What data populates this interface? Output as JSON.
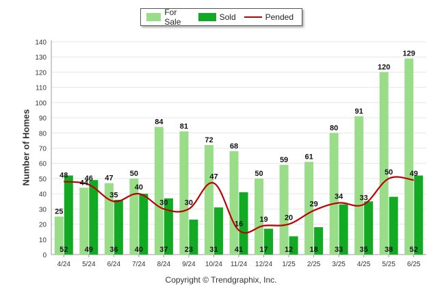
{
  "chart_data": {
    "type": "bar",
    "categories": [
      "4/24",
      "5/24",
      "6/24",
      "7/24",
      "8/24",
      "9/24",
      "10/24",
      "11/24",
      "12/24",
      "1/25",
      "2/25",
      "3/25",
      "4/25",
      "5/25",
      "6/25"
    ],
    "series": [
      {
        "name": "For Sale",
        "type": "bar",
        "color": "#99dd88",
        "values": [
          25,
          44,
          47,
          50,
          84,
          81,
          72,
          68,
          50,
          59,
          61,
          80,
          91,
          120,
          129
        ]
      },
      {
        "name": "Sold",
        "type": "bar",
        "color": "#11aa22",
        "values": [
          52,
          49,
          36,
          40,
          37,
          23,
          31,
          41,
          17,
          12,
          18,
          33,
          35,
          38,
          52
        ]
      },
      {
        "name": "Pended",
        "type": "line",
        "color": "#c00000",
        "values": [
          48,
          46,
          35,
          40,
          30,
          30,
          47,
          16,
          19,
          20,
          29,
          34,
          33,
          50,
          49
        ]
      }
    ],
    "ylabel": "Number of Homes",
    "ylim": [
      0,
      140
    ],
    "yticks": [
      0,
      10,
      20,
      30,
      40,
      50,
      60,
      70,
      80,
      90,
      100,
      110,
      120,
      130,
      140
    ],
    "grid": true,
    "legend": "top-center"
  },
  "footer": {
    "copyright": "Copyright © Trendgraphix, Inc."
  }
}
